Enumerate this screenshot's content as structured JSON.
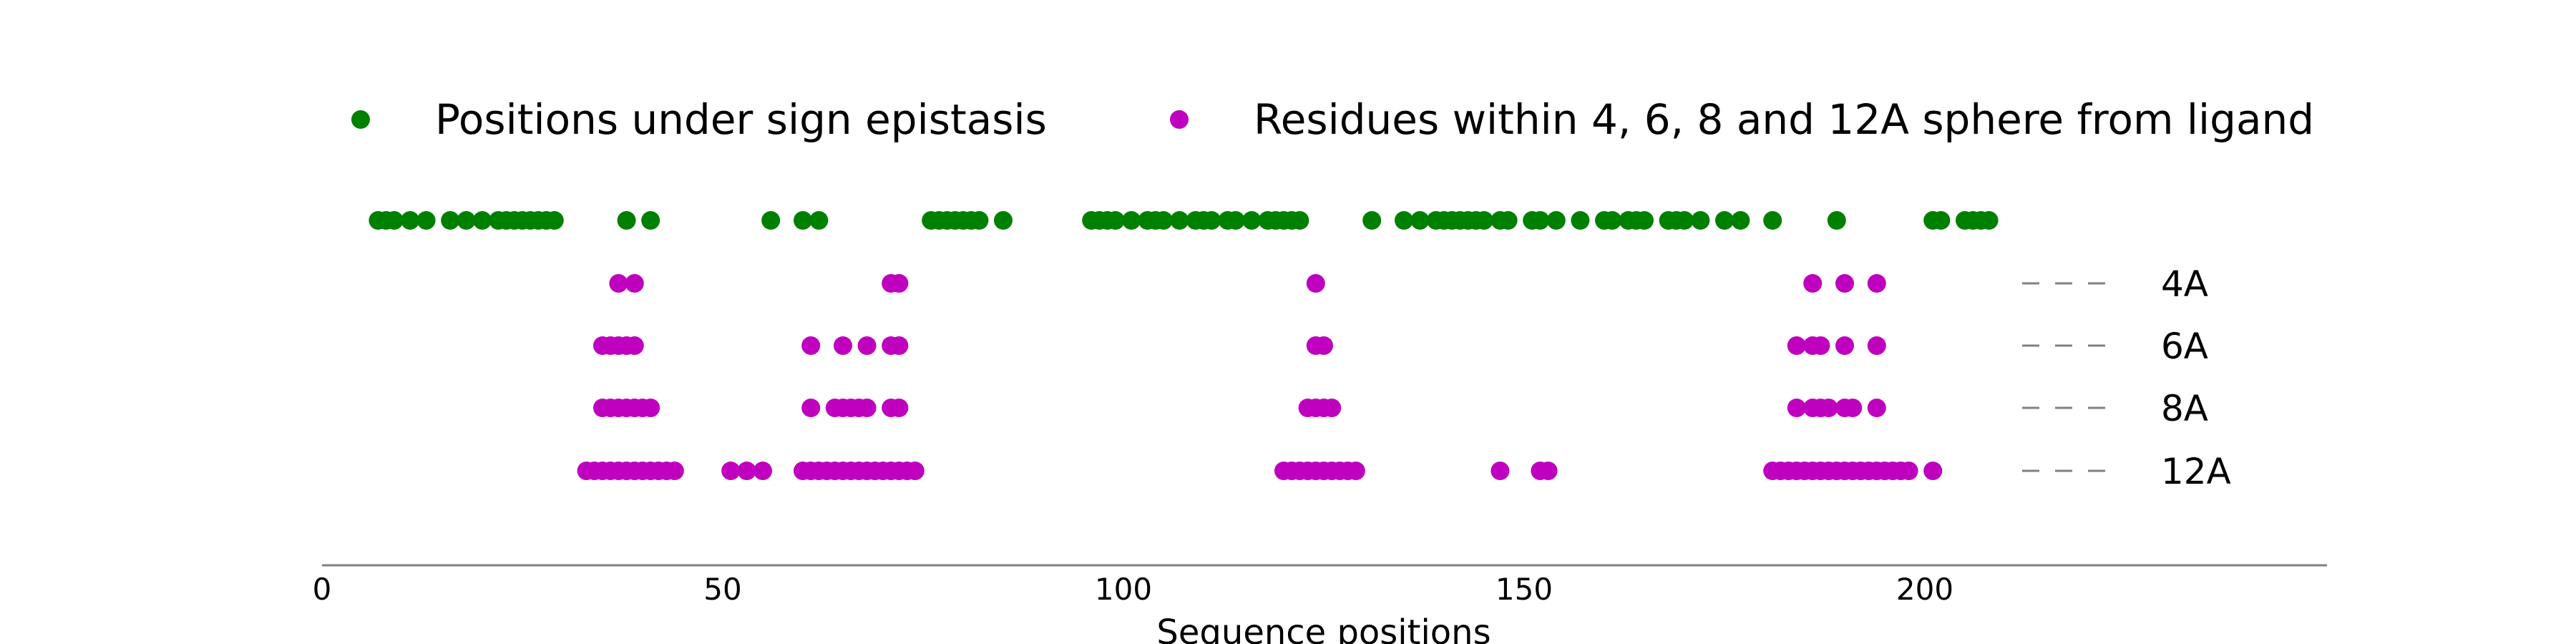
{
  "chart_data": {
    "type": "scatter",
    "xlabel": "Sequence positions",
    "xlim": [
      0,
      250
    ],
    "x_ticks": [
      "0",
      "50",
      "100",
      "150",
      "200"
    ],
    "x_tick_values": [
      0,
      50,
      100,
      150,
      200
    ],
    "legend_placement": "top",
    "grid": false,
    "series": [
      {
        "name": "Positions under sign epistasis",
        "color": "#008000",
        "x": [
          7,
          8,
          9,
          11,
          13,
          16,
          18,
          20,
          22,
          23,
          24,
          25,
          26,
          27,
          28,
          29,
          38,
          41,
          56,
          60,
          62,
          76,
          77,
          78,
          79,
          80,
          81,
          82,
          85,
          96,
          97,
          98,
          99,
          101,
          103,
          104,
          105,
          107,
          109,
          110,
          111,
          113,
          114,
          116,
          118,
          119,
          120,
          121,
          122,
          131,
          135,
          137,
          139,
          140,
          141,
          142,
          143,
          144,
          145,
          147,
          148,
          151,
          152,
          154,
          157,
          160,
          161,
          163,
          164,
          165,
          168,
          169,
          170,
          172,
          175,
          177,
          181,
          189,
          201,
          202,
          205,
          206,
          207,
          208
        ]
      },
      {
        "name": "Residues within 4, 6, 8 and 12A sphere from ligand",
        "color": "#bf00bf",
        "rows": [
          {
            "label": "4A",
            "x": [
              37,
              39,
              71,
              72,
              124,
              186,
              190,
              194
            ]
          },
          {
            "label": "6A",
            "x": [
              35,
              36,
              37,
              38,
              39,
              61,
              65,
              68,
              71,
              72,
              124,
              125,
              184,
              186,
              187,
              190,
              194
            ]
          },
          {
            "label": "8A",
            "x": [
              35,
              36,
              37,
              38,
              39,
              40,
              41,
              61,
              64,
              65,
              66,
              67,
              68,
              71,
              72,
              123,
              124,
              125,
              126,
              184,
              186,
              187,
              188,
              190,
              191,
              194
            ]
          },
          {
            "label": "12A",
            "x": [
              33,
              34,
              35,
              36,
              37,
              38,
              39,
              40,
              41,
              42,
              43,
              44,
              51,
              53,
              55,
              60,
              61,
              62,
              63,
              64,
              65,
              66,
              67,
              68,
              69,
              70,
              71,
              72,
              73,
              74,
              120,
              121,
              122,
              123,
              124,
              125,
              126,
              127,
              128,
              129,
              147,
              152,
              153,
              181,
              182,
              183,
              184,
              185,
              186,
              187,
              188,
              189,
              190,
              191,
              192,
              193,
              194,
              195,
              196,
              197,
              198,
              201
            ]
          }
        ]
      }
    ],
    "row_labels": [
      "4A",
      "6A",
      "8A",
      "12A"
    ]
  }
}
